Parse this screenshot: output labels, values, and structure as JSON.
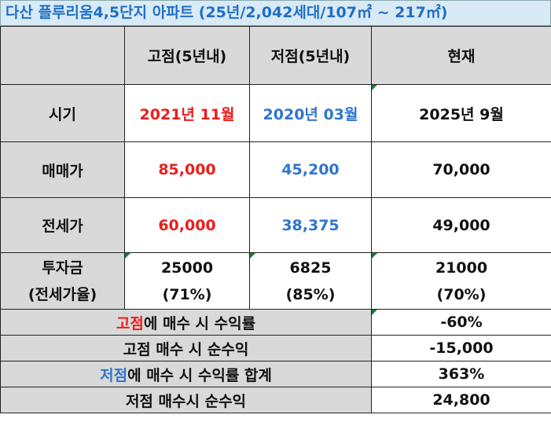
{
  "title": "다산 플루리움4,5단지 아파트 (25년/2,042세대/107㎡ ~ 217㎡)",
  "headers": {
    "high": "고점(5년내)",
    "low": "저점(5년내)",
    "current": "현재"
  },
  "rows": {
    "period": {
      "label": "시기",
      "high": "2021년 11월",
      "low": "2020년 03월",
      "current": "2025년 9월"
    },
    "sale_price": {
      "label": "매매가",
      "high": "85,000",
      "low": "45,200",
      "current": "70,000"
    },
    "jeonse_price": {
      "label": "전세가",
      "high": "60,000",
      "low": "38,375",
      "current": "49,000"
    },
    "investment": {
      "label_line1": "투자금",
      "label_line2": "(전세가율)",
      "high": "25000",
      "high_ratio": "(71%)",
      "low": "6825",
      "low_ratio": "(85%)",
      "current": "21000",
      "current_ratio": "(70%)"
    }
  },
  "summary": [
    {
      "label_highlight": "고점",
      "label_rest": "에 매수 시 수익률",
      "value": "-60%",
      "highlight_color": "#ee1c1c"
    },
    {
      "label_highlight": "",
      "label_rest": "고점 매수 시 순수익",
      "value": "-15,000",
      "highlight_color": ""
    },
    {
      "label_highlight": "저점",
      "label_rest": "에 매수 시 수익률 합계",
      "value": "363%",
      "highlight_color": "#2e75d0"
    },
    {
      "label_highlight": "",
      "label_rest": "저점 매수시 순수익",
      "value": "24,800",
      "highlight_color": ""
    }
  ]
}
